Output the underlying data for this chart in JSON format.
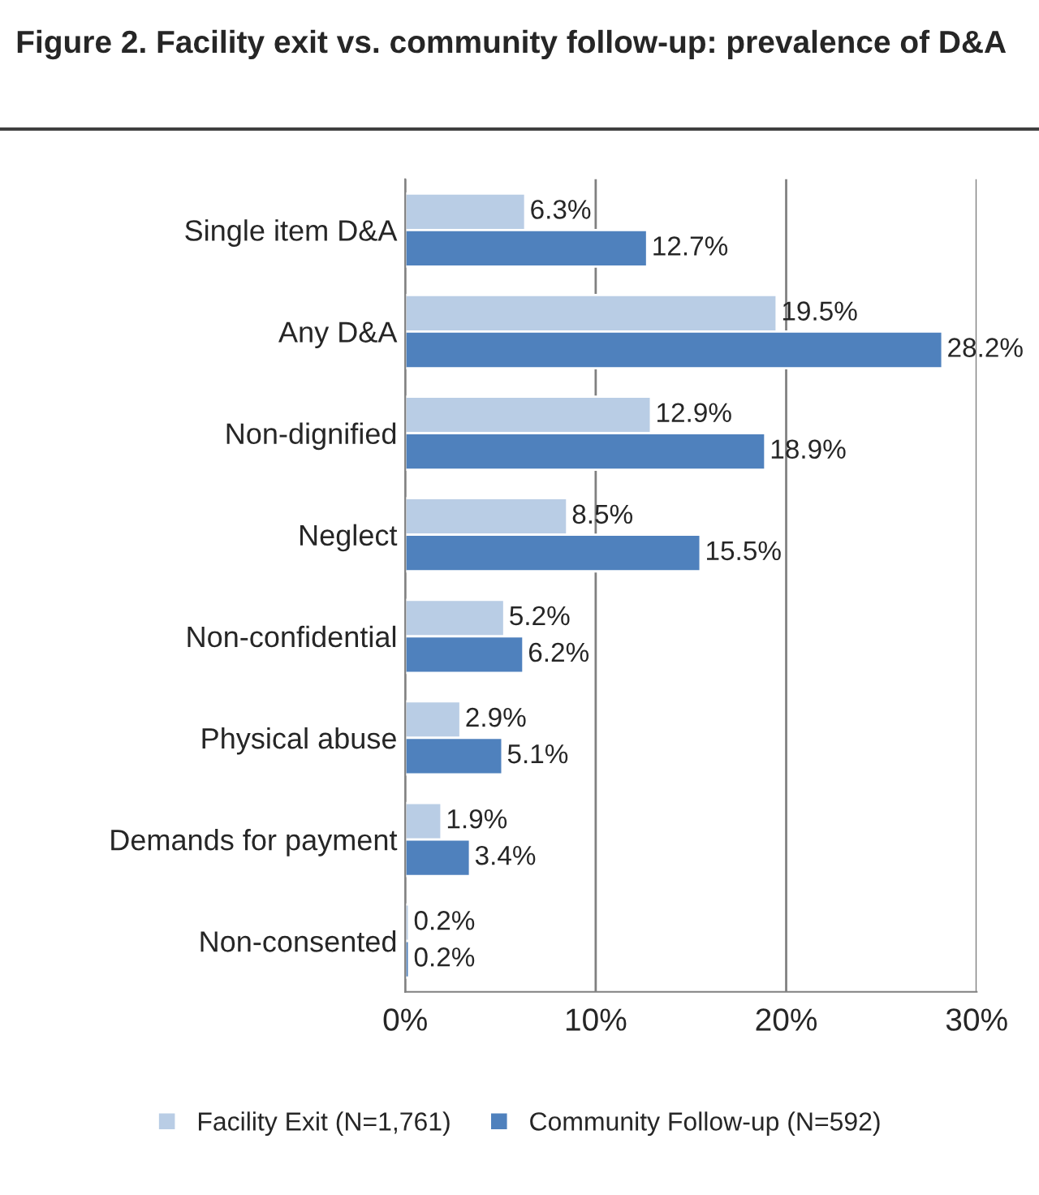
{
  "chart_data": {
    "type": "bar",
    "orientation": "horizontal",
    "title": "Figure 2. Facility exit vs. community follow-up: prevalence of D&A",
    "categories": [
      "Single item D&A",
      "Any D&A",
      "Non-dignified",
      "Neglect",
      "Non-confidential",
      "Physical abuse",
      "Demands for payment",
      "Non-consented"
    ],
    "series": [
      {
        "name": "Facility Exit (N=1,761)",
        "color": "#b9cde5",
        "values": [
          6.3,
          19.5,
          12.9,
          8.5,
          5.2,
          2.9,
          1.9,
          0.2
        ],
        "value_labels": [
          "6.3%",
          "19.5%",
          "12.9%",
          "8.5%",
          "5.2%",
          "2.9%",
          "1.9%",
          "0.2%"
        ]
      },
      {
        "name": "Community Follow-up (N=592)",
        "color": "#4f81bd",
        "values": [
          12.7,
          28.2,
          18.9,
          15.5,
          6.2,
          5.1,
          3.4,
          0.2
        ],
        "value_labels": [
          "12.7%",
          "28.2%",
          "18.9%",
          "15.5%",
          "6.2%",
          "5.1%",
          "3.4%",
          "0.2%"
        ]
      }
    ],
    "xlim": [
      0,
      30
    ],
    "xticks": [
      {
        "value": 0,
        "label": "0%"
      },
      {
        "value": 10,
        "label": "10%"
      },
      {
        "value": 20,
        "label": "20%"
      },
      {
        "value": 30,
        "label": "30%"
      }
    ],
    "grid": "x",
    "legend": "bottom"
  }
}
